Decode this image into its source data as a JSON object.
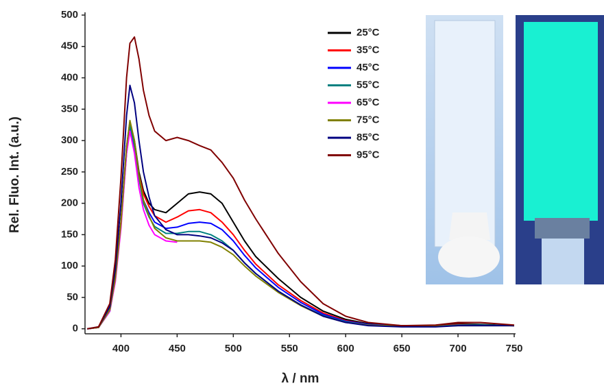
{
  "chart_data": {
    "type": "line",
    "x_label": "λ / nm",
    "y_label": "Rel. Fluo. Int. (a.u.)",
    "xlim": [
      368,
      750
    ],
    "ylim": [
      -8,
      500
    ],
    "xticks": [
      400,
      450,
      500,
      550,
      600,
      650,
      700,
      750
    ],
    "yticks": [
      0,
      50,
      100,
      150,
      200,
      250,
      300,
      350,
      400,
      450,
      500
    ],
    "x": [
      370,
      380,
      390,
      395,
      400,
      405,
      408,
      412,
      416,
      420,
      425,
      430,
      440,
      450,
      460,
      470,
      480,
      490,
      500,
      510,
      520,
      540,
      560,
      580,
      600,
      620,
      650,
      680,
      700,
      720,
      750
    ],
    "series": [
      {
        "name": "25°C",
        "color": "#000000",
        "values": [
          0,
          2,
          30,
          80,
          170,
          290,
          330,
          300,
          250,
          220,
          200,
          190,
          185,
          200,
          215,
          218,
          215,
          200,
          170,
          140,
          115,
          80,
          50,
          28,
          15,
          8,
          5,
          5,
          8,
          7,
          5
        ]
      },
      {
        "name": "35°C",
        "color": "#ff0000",
        "values": [
          0,
          2,
          30,
          80,
          170,
          285,
          325,
          295,
          245,
          215,
          195,
          180,
          170,
          178,
          188,
          190,
          185,
          170,
          150,
          125,
          103,
          70,
          45,
          25,
          13,
          7,
          4,
          4,
          7,
          6,
          5
        ]
      },
      {
        "name": "45°C",
        "color": "#0000ff",
        "values": [
          0,
          2,
          28,
          78,
          165,
          280,
          320,
          290,
          240,
          205,
          185,
          170,
          160,
          162,
          168,
          170,
          168,
          158,
          140,
          117,
          97,
          66,
          42,
          23,
          12,
          7,
          4,
          4,
          6,
          6,
          5
        ]
      },
      {
        "name": "55°C",
        "color": "#008080",
        "values": [
          0,
          2,
          28,
          78,
          165,
          285,
          325,
          292,
          240,
          200,
          178,
          163,
          152,
          152,
          155,
          155,
          150,
          140,
          125,
          105,
          88,
          60,
          38,
          21,
          11,
          6,
          4,
          4,
          6,
          6,
          5
        ]
      },
      {
        "name": "65°C",
        "color": "#ff00ff",
        "values": [
          0,
          2,
          28,
          75,
          160,
          280,
          315,
          280,
          225,
          190,
          165,
          150,
          140,
          138,
          null,
          null,
          null,
          null,
          null,
          null,
          null,
          null,
          null,
          null,
          null,
          null,
          null,
          null,
          null,
          null,
          null
        ]
      },
      {
        "name": "75°C",
        "color": "#808000",
        "values": [
          0,
          2,
          30,
          80,
          168,
          290,
          332,
          300,
          245,
          205,
          180,
          160,
          145,
          140,
          140,
          140,
          138,
          130,
          118,
          100,
          84,
          58,
          37,
          20,
          10,
          6,
          4,
          4,
          5,
          5,
          5
        ]
      },
      {
        "name": "85°C",
        "color": "#000080",
        "values": [
          0,
          3,
          35,
          95,
          200,
          340,
          388,
          360,
          300,
          250,
          210,
          180,
          158,
          150,
          150,
          148,
          145,
          137,
          125,
          105,
          88,
          60,
          38,
          20,
          10,
          5,
          3,
          3,
          5,
          5,
          5
        ]
      },
      {
        "name": "95°C",
        "color": "#800000",
        "values": [
          0,
          3,
          40,
          110,
          240,
          400,
          455,
          465,
          430,
          380,
          340,
          315,
          300,
          305,
          300,
          292,
          285,
          265,
          240,
          205,
          175,
          120,
          75,
          40,
          20,
          10,
          5,
          6,
          10,
          10,
          6
        ]
      }
    ]
  }
}
